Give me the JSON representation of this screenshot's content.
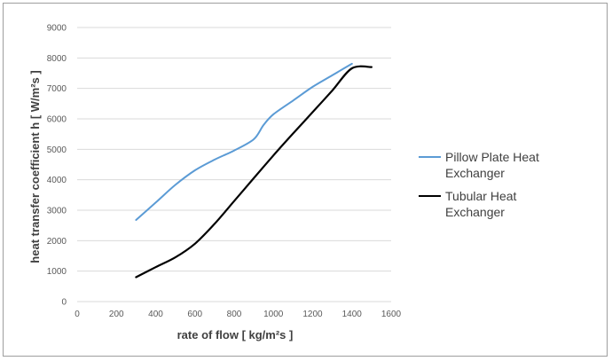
{
  "chart_data": {
    "type": "line",
    "title": "",
    "xlabel": "rate of flow [ kg/m²s ]",
    "ylabel": "heat transfer coefficient h [ W/m²s ]",
    "xlim": [
      0,
      1600
    ],
    "ylim": [
      0,
      9000
    ],
    "xticks": [
      "0",
      "200",
      "400",
      "600",
      "800",
      "1000",
      "1200",
      "1400",
      "1600"
    ],
    "yticks": [
      "0",
      "1000",
      "2000",
      "3000",
      "4000",
      "5000",
      "6000",
      "7000",
      "8000",
      "9000"
    ],
    "grid": "horizontal",
    "legend": "right",
    "series": [
      {
        "name": "Pillow Plate Heat Exchanger",
        "color": "#5b9bd5",
        "x": [
          300,
          400,
          500,
          600,
          700,
          800,
          900,
          950,
          1000,
          1100,
          1200,
          1300,
          1400
        ],
        "y": [
          2680,
          3250,
          3830,
          4310,
          4660,
          4960,
          5330,
          5800,
          6150,
          6600,
          7050,
          7430,
          7810
        ]
      },
      {
        "name": "Tubular Heat Exchanger",
        "color": "#000000",
        "x": [
          300,
          400,
          500,
          600,
          700,
          800,
          900,
          1000,
          1100,
          1200,
          1300,
          1400,
          1500
        ],
        "y": [
          800,
          1130,
          1450,
          1900,
          2550,
          3300,
          4050,
          4800,
          5520,
          6220,
          6930,
          7660,
          7700
        ]
      }
    ]
  }
}
